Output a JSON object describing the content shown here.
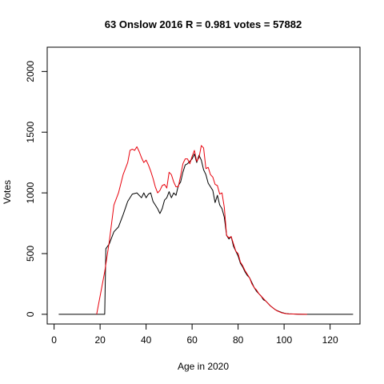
{
  "chart_data": {
    "type": "line",
    "title": "63 Onslow 2016 R = 0.981 votes = 57882",
    "xlabel": "Age in 2020",
    "ylabel": "Votes",
    "xlim": [
      -3,
      133
    ],
    "ylim": [
      -80,
      2200
    ],
    "xticks": [
      0,
      20,
      40,
      60,
      80,
      100,
      120
    ],
    "yticks": [
      0,
      500,
      1000,
      1500,
      2000
    ],
    "grid": false,
    "series": [
      {
        "color": "#000000",
        "x": [
          2,
          21,
          22,
          22.5,
          24,
          26,
          28,
          30,
          32,
          34,
          36,
          38,
          39,
          40,
          41,
          42,
          43,
          44,
          45,
          46,
          47,
          48,
          49,
          50,
          51,
          52,
          53,
          54,
          55,
          56,
          57,
          58,
          59,
          60,
          61,
          62,
          63,
          64,
          65,
          66,
          67,
          68,
          69,
          70,
          71,
          72,
          73,
          74,
          75,
          76,
          77,
          78,
          79,
          80,
          81,
          82,
          83,
          84,
          85,
          86,
          87,
          88,
          89,
          90,
          91,
          92,
          93,
          94,
          95,
          96,
          97,
          98,
          99,
          100,
          101,
          102,
          104,
          106,
          110,
          115,
          120,
          130
        ],
        "y": [
          0,
          0,
          0,
          540,
          580,
          680,
          720,
          820,
          930,
          990,
          1000,
          960,
          1000,
          960,
          990,
          1000,
          930,
          900,
          870,
          830,
          870,
          940,
          960,
          1010,
          960,
          1000,
          980,
          1060,
          1090,
          1170,
          1230,
          1240,
          1260,
          1280,
          1320,
          1250,
          1310,
          1270,
          1190,
          1150,
          1080,
          1050,
          1020,
          920,
          980,
          900,
          870,
          800,
          650,
          620,
          640,
          560,
          520,
          480,
          420,
          390,
          350,
          320,
          300,
          260,
          220,
          190,
          170,
          150,
          120,
          110,
          90,
          70,
          55,
          40,
          30,
          22,
          15,
          10,
          6,
          4,
          2,
          1,
          0,
          0,
          0,
          0
        ]
      },
      {
        "color": "#e8000b",
        "x": [
          18.5,
          20,
          22,
          24,
          26,
          28,
          30,
          32,
          33,
          34,
          35,
          36,
          37,
          38,
          39,
          40,
          41,
          42,
          43,
          44,
          45,
          46,
          47,
          48,
          49,
          50,
          51,
          52,
          53,
          54,
          55,
          56,
          57,
          58,
          59,
          60,
          61,
          62,
          63,
          64,
          65,
          66,
          67,
          68,
          69,
          70,
          71,
          72,
          73,
          74,
          75,
          76,
          77,
          78,
          79,
          80,
          81,
          82,
          83,
          84,
          85,
          86,
          87,
          88,
          89,
          90,
          91,
          92,
          93,
          94,
          95,
          96,
          97,
          98,
          99,
          100,
          101,
          102,
          104,
          106,
          110
        ],
        "y": [
          0,
          150,
          350,
          600,
          900,
          1000,
          1150,
          1250,
          1350,
          1360,
          1350,
          1380,
          1340,
          1290,
          1250,
          1270,
          1230,
          1180,
          1120,
          1050,
          1000,
          1020,
          1060,
          1070,
          1040,
          1170,
          1150,
          1090,
          1050,
          1050,
          1140,
          1240,
          1280,
          1280,
          1240,
          1300,
          1350,
          1260,
          1290,
          1390,
          1370,
          1200,
          1210,
          1150,
          1130,
          1070,
          1060,
          990,
          1000,
          880,
          650,
          630,
          640,
          580,
          520,
          500,
          430,
          400,
          360,
          330,
          300,
          250,
          220,
          200,
          170,
          150,
          130,
          110,
          90,
          70,
          55,
          40,
          28,
          20,
          12,
          8,
          5,
          3,
          2,
          1,
          0
        ]
      }
    ]
  }
}
